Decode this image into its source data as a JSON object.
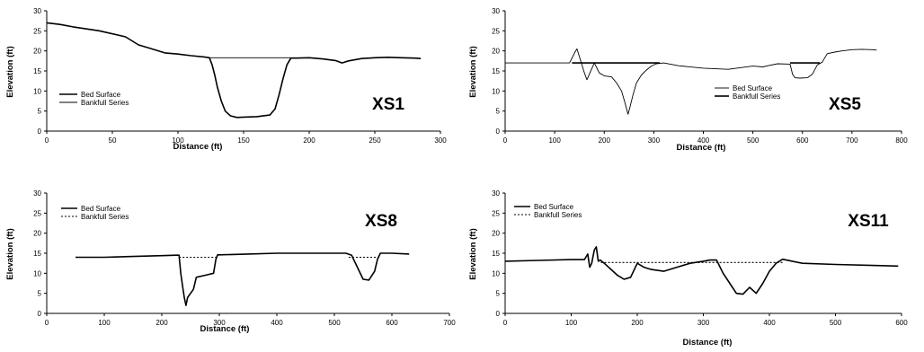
{
  "chart_data": [
    {
      "type": "line",
      "label": "XS1",
      "xlabel": "Distance (ft)",
      "ylabel": "Elevation (ft)",
      "xlim": [
        0,
        300
      ],
      "xticks": [
        0,
        50,
        100,
        150,
        200,
        250,
        300
      ],
      "ylim": [
        0,
        30
      ],
      "yticks": [
        0,
        5,
        10,
        15,
        20,
        25,
        30
      ],
      "legend": {
        "position": "left",
        "entries": [
          "Bed Surface",
          "Bankfull Series"
        ]
      },
      "series": [
        {
          "name": "Bed Surface",
          "style": "solid-thick",
          "x": [
            0,
            10,
            20,
            40,
            60,
            70,
            80,
            90,
            100,
            110,
            120,
            124,
            126,
            128,
            130,
            133,
            136,
            140,
            145,
            150,
            160,
            170,
            174,
            177,
            180,
            183,
            186,
            190,
            200,
            210,
            220,
            225,
            230,
            240,
            250,
            260,
            270,
            280,
            285
          ],
          "y": [
            27,
            26.6,
            26,
            25,
            23.5,
            21.5,
            20.5,
            19.5,
            19.2,
            18.8,
            18.5,
            18.3,
            16.5,
            14,
            11,
            7.5,
            5,
            3.8,
            3.4,
            3.5,
            3.6,
            4,
            5.5,
            9,
            13,
            16.5,
            18.2,
            18.2,
            18.3,
            18,
            17.6,
            17.0,
            17.5,
            18.1,
            18.3,
            18.4,
            18.3,
            18.2,
            18.1
          ]
        },
        {
          "name": "Bankfull Series",
          "style": "solid-thin",
          "x": [
            124,
            186
          ],
          "y": [
            18.3,
            18.3
          ]
        }
      ]
    },
    {
      "type": "line",
      "label": "XS5",
      "xlabel": "Distance (ft)",
      "ylabel": "Elevation (ft)",
      "xlim": [
        0,
        800
      ],
      "xticks": [
        0,
        100,
        200,
        300,
        400,
        500,
        600,
        700,
        800
      ],
      "ylim": [
        0,
        30
      ],
      "yticks": [
        0,
        5,
        10,
        15,
        20,
        25,
        30
      ],
      "legend": {
        "position": "center",
        "entries": [
          "Bed Surface",
          "Bankfull Series"
        ]
      },
      "series": [
        {
          "name": "Bed Surface",
          "style": "solid-thin",
          "x": [
            0,
            50,
            100,
            130,
            140,
            145,
            150,
            155,
            160,
            165,
            170,
            180,
            190,
            200,
            215,
            225,
            235,
            242,
            248,
            252,
            258,
            265,
            275,
            285,
            295,
            305,
            320,
            350,
            400,
            450,
            500,
            520,
            530,
            550,
            575,
            580,
            585,
            595,
            610,
            620,
            630,
            640,
            650,
            665,
            680,
            700,
            720,
            740,
            750
          ],
          "y": [
            17,
            17,
            17,
            17,
            19.5,
            20.5,
            18.5,
            16.5,
            14.5,
            12.8,
            14.2,
            17,
            14.5,
            13.8,
            13.5,
            12.0,
            10.0,
            7.0,
            4.2,
            6.0,
            9.0,
            12.0,
            14.0,
            15.2,
            16.2,
            16.8,
            17,
            16.3,
            15.7,
            15.4,
            16.2,
            16.0,
            16.3,
            16.8,
            16.7,
            14.2,
            13.3,
            13.2,
            13.3,
            14.2,
            16.5,
            17.2,
            19.3,
            19.7,
            20.0,
            20.3,
            20.4,
            20.3,
            20.2
          ]
        },
        {
          "name": "Bankfull Series",
          "style": "solid-thick",
          "x": [
            135,
            312
          ],
          "y": [
            17,
            17
          ]
        },
        {
          "name": "Bankfull Series",
          "style": "solid-thick",
          "x": [
            575,
            635
          ],
          "y": [
            17,
            17
          ]
        }
      ]
    },
    {
      "type": "line",
      "label": "XS8",
      "xlabel": "Distance (ft)",
      "ylabel": "Elevation (ft)",
      "xlim": [
        0,
        700
      ],
      "xticks": [
        0,
        100,
        200,
        300,
        400,
        500,
        600,
        700
      ],
      "ylim": [
        0,
        30
      ],
      "yticks": [
        0,
        5,
        10,
        15,
        20,
        25,
        30
      ],
      "legend": {
        "position": "top-left",
        "entries": [
          "Bed Surface",
          "Bankfull Series"
        ]
      },
      "series": [
        {
          "name": "Bed Surface",
          "style": "solid-thick",
          "x": [
            50,
            100,
            150,
            200,
            225,
            230,
            233,
            236,
            239,
            242,
            245,
            250,
            255,
            260,
            275,
            290,
            294,
            297,
            300,
            350,
            400,
            450,
            500,
            520,
            530,
            540,
            550,
            560,
            570,
            575,
            580,
            600,
            630
          ],
          "y": [
            14,
            14,
            14.2,
            14.4,
            14.5,
            14.5,
            10,
            7,
            4,
            2,
            4,
            5,
            6,
            9,
            9.5,
            10,
            13.5,
            14.6,
            14.6,
            14.8,
            15,
            15,
            15,
            15,
            14.5,
            11.5,
            8.5,
            8.3,
            10.5,
            13.5,
            15,
            15,
            14.8
          ]
        },
        {
          "name": "Bankfull Series",
          "style": "dotted",
          "x": [
            230,
            297
          ],
          "y": [
            14,
            14
          ]
        },
        {
          "name": "Bankfull Series",
          "style": "dotted",
          "x": [
            525,
            580
          ],
          "y": [
            14,
            14
          ]
        }
      ]
    },
    {
      "type": "line",
      "label": "XS11",
      "xlabel": "Distance (ft)",
      "ylabel": "Elevation (ft)",
      "xlim": [
        0,
        600
      ],
      "xticks": [
        0,
        100,
        200,
        300,
        400,
        500,
        600
      ],
      "ylim": [
        0,
        30
      ],
      "yticks": [
        0,
        5,
        10,
        15,
        20,
        25,
        30
      ],
      "legend": {
        "position": "top-left",
        "entries": [
          "Bed Surface",
          "Bankfull Series"
        ]
      },
      "series": [
        {
          "name": "Bed Surface",
          "style": "solid-thick",
          "x": [
            0,
            50,
            100,
            120,
            125,
            128,
            131,
            135,
            138,
            141,
            144,
            150,
            160,
            170,
            180,
            190,
            200,
            210,
            220,
            240,
            260,
            280,
            300,
            310,
            320,
            330,
            340,
            350,
            360,
            370,
            380,
            390,
            400,
            410,
            420,
            450,
            500,
            550,
            595
          ],
          "y": [
            13,
            13.2,
            13.4,
            13.4,
            14.8,
            11.5,
            12.5,
            15.8,
            16.6,
            13,
            13.3,
            12.5,
            11,
            9.5,
            8.5,
            9,
            12.5,
            11.5,
            11,
            10.5,
            11.5,
            12.5,
            13,
            13.3,
            13.3,
            10,
            7.5,
            5,
            4.8,
            6.5,
            5.0,
            7.5,
            10.5,
            12.5,
            13.5,
            12.5,
            12.2,
            12.0,
            11.8
          ]
        },
        {
          "name": "Bankfull Series",
          "style": "dotted",
          "x": [
            145,
            420
          ],
          "y": [
            12.7,
            12.7
          ]
        }
      ]
    }
  ]
}
